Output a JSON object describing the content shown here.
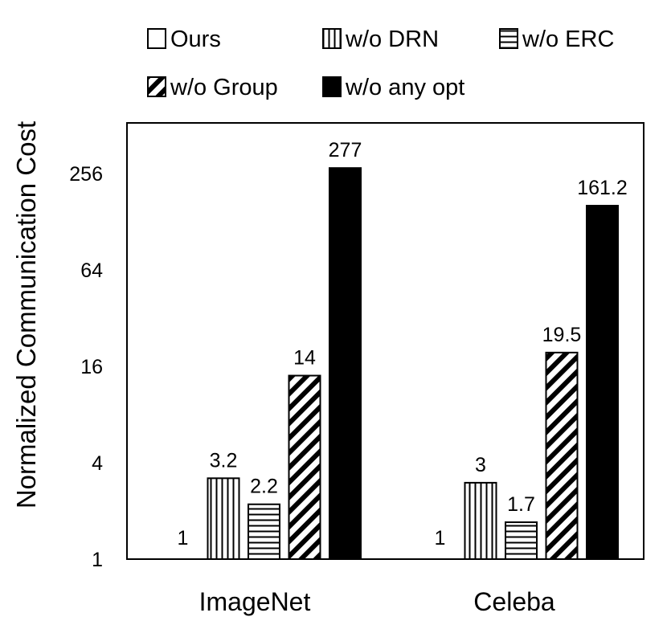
{
  "chart_data": {
    "type": "bar",
    "title": "",
    "xlabel": "",
    "ylabel": "Normalized Communication Cost",
    "yscale": "log2",
    "ylim": [
      1,
      512
    ],
    "yticks": [
      1,
      4,
      16,
      64,
      256
    ],
    "yticklabels": [
      "1",
      "4",
      "16",
      "64",
      "256"
    ],
    "grid": false,
    "legend_position": "top",
    "categories": [
      "ImageNet",
      "Celeba"
    ],
    "series": [
      {
        "name": "Ours",
        "pattern": "none",
        "values": [
          1,
          1
        ],
        "labels": [
          "1",
          "1"
        ]
      },
      {
        "name": "w/o DRN",
        "pattern": "vertical",
        "values": [
          3.2,
          3
        ],
        "labels": [
          "3.2",
          "3"
        ]
      },
      {
        "name": "w/o ERC",
        "pattern": "horizontal",
        "values": [
          2.2,
          1.7
        ],
        "labels": [
          "2.2",
          "1.7"
        ]
      },
      {
        "name": "w/o Group",
        "pattern": "diagonal",
        "values": [
          14,
          19.5
        ],
        "labels": [
          "14",
          "19.5"
        ]
      },
      {
        "name": "w/o any opt",
        "pattern": "solid",
        "values": [
          277,
          161.2
        ],
        "labels": [
          "277",
          "161.2"
        ]
      }
    ],
    "colors": {
      "stroke": "#000000",
      "fill": "#ffffff",
      "solid": "#000000",
      "label_gray": "#404040"
    }
  }
}
